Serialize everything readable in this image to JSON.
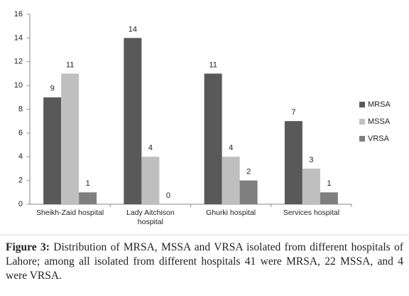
{
  "chart_data": {
    "type": "bar",
    "categories": [
      "Sheikh-Zaid hospital",
      "Lady Aitchison hospital",
      "Ghurki hospital",
      "Services hospital"
    ],
    "series": [
      {
        "name": "MRSA",
        "color": "#595959",
        "values": [
          9,
          14,
          11,
          7
        ]
      },
      {
        "name": "MSSA",
        "color": "#bfbfbf",
        "values": [
          11,
          4,
          4,
          3
        ]
      },
      {
        "name": "VRSA",
        "color": "#7f7f7f",
        "values": [
          1,
          0,
          2,
          1
        ]
      }
    ],
    "ylim": [
      0,
      16
    ],
    "yticks": [
      0,
      2,
      4,
      6,
      8,
      10,
      12,
      14,
      16
    ],
    "grid": false,
    "legend": "right",
    "data_labels": true
  },
  "caption": {
    "label": "Figure 3:",
    "text": "Distribution of MRSA, MSSA and VRSA isolated from different hospitals of Lahore; among all isolated from different hospitals 41 were MRSA, 22 MSSA, and 4 were VRSA."
  }
}
